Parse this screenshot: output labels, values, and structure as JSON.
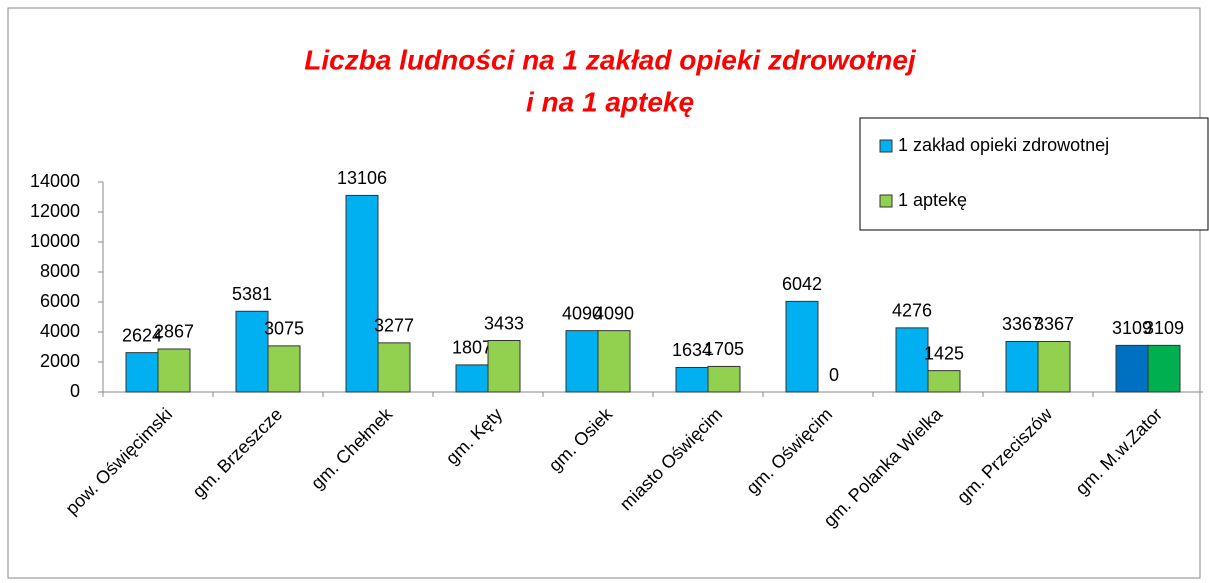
{
  "chart_data": {
    "type": "bar",
    "title": [
      "Liczba ludności na 1 zakład opieki zdrowotnej",
      "i na 1 aptekę"
    ],
    "categories": [
      "pow. Oświęcimski",
      "gm. Brzeszcze",
      "gm. Chełmek",
      "gm. Kęty",
      "gm. Osiek",
      "miasto Oświęcim",
      "gm. Oświęcim",
      "gm. Polanka Wielka",
      "gm. Przeciszów",
      "gm. M.w.Zator"
    ],
    "series": [
      {
        "name": "1 zakład opieki zdrowotnej",
        "color": "#00b0f0",
        "colors": [
          "#00b0f0",
          "#00b0f0",
          "#00b0f0",
          "#00b0f0",
          "#00b0f0",
          "#00b0f0",
          "#00b0f0",
          "#00b0f0",
          "#00b0f0",
          "#0070c0"
        ],
        "values": [
          2624,
          5381,
          13106,
          1807,
          4090,
          1634,
          6042,
          4276,
          3367,
          3109
        ]
      },
      {
        "name": "1 aptekę",
        "color": "#92d050",
        "colors": [
          "#92d050",
          "#92d050",
          "#92d050",
          "#92d050",
          "#92d050",
          "#92d050",
          "#92d050",
          "#92d050",
          "#92d050",
          "#00b050"
        ],
        "values": [
          2867,
          3075,
          3277,
          3433,
          4090,
          1705,
          0,
          1425,
          3367,
          3109
        ]
      }
    ],
    "ylim": [
      0,
      14000
    ],
    "yticks": [
      0,
      2000,
      4000,
      6000,
      8000,
      10000,
      12000,
      14000
    ],
    "legend": "upper right"
  }
}
